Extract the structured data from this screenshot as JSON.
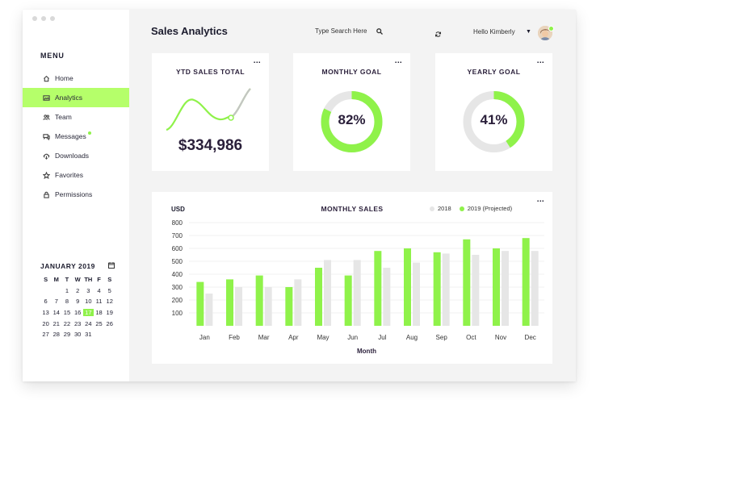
{
  "window": {
    "title": "Sales Analytics"
  },
  "header": {
    "search_placeholder": "Type Search Here",
    "greeting": "Hello Kimberly",
    "search_icon": "search-icon",
    "refresh_icon": "refresh-icon"
  },
  "sidebar": {
    "menu_title": "MENU",
    "items": [
      {
        "label": "Home",
        "icon": "home-icon",
        "active": false
      },
      {
        "label": "Analytics",
        "icon": "image-icon",
        "active": true
      },
      {
        "label": "Team",
        "icon": "team-icon",
        "active": false
      },
      {
        "label": "Messages",
        "icon": "messages-icon",
        "active": false,
        "badge": true
      },
      {
        "label": "Downloads",
        "icon": "cloud-download-icon",
        "active": false
      },
      {
        "label": "Favorites",
        "icon": "star-icon",
        "active": false
      },
      {
        "label": "Permissions",
        "icon": "lock-icon",
        "active": false
      }
    ]
  },
  "calendar": {
    "month_label": "JANUARY 2019",
    "weekdays": [
      "S",
      "M",
      "T",
      "W",
      "TH",
      "F",
      "S"
    ],
    "start_offset": 2,
    "days_in_month": 31,
    "selected_day": 17
  },
  "cards": {
    "ytd": {
      "title": "YTD SALES TOTAL",
      "value": "$334,986"
    },
    "monthly_goal": {
      "title": "MONTHLY GOAL",
      "value": "82%",
      "fraction": 0.82
    },
    "yearly_goal": {
      "title": "YEARLY GOAL",
      "value": "41%",
      "fraction": 0.41
    },
    "more_label": "..."
  },
  "colors": {
    "accent": "#8ff24a",
    "accent_light": "#b5ff6a",
    "muted": "#e6e6e6",
    "text_dark": "#2a1f3a",
    "bg": "#f3f3f3"
  },
  "chart_data": {
    "type": "bar",
    "title": "MONTHLY SALES",
    "ylabel": "USD",
    "xlabel": "Month",
    "categories": [
      "Jan",
      "Feb",
      "Mar",
      "Apr",
      "May",
      "Jun",
      "Jul",
      "Aug",
      "Sep",
      "Oct",
      "Nov",
      "Dec"
    ],
    "series": [
      {
        "name": "2018",
        "color": "#e6e6e6",
        "values": [
          250,
          300,
          300,
          360,
          510,
          510,
          450,
          490,
          560,
          550,
          580,
          580
        ]
      },
      {
        "name": "2019 (Projected)",
        "color": "#8ff24a",
        "values": [
          340,
          360,
          390,
          300,
          450,
          390,
          580,
          600,
          570,
          670,
          600,
          680
        ]
      }
    ],
    "yticks": [
      100,
      200,
      300,
      400,
      500,
      600,
      700,
      800
    ],
    "ylim": [
      0,
      800
    ],
    "grid": true,
    "legend_position": "top-right"
  }
}
